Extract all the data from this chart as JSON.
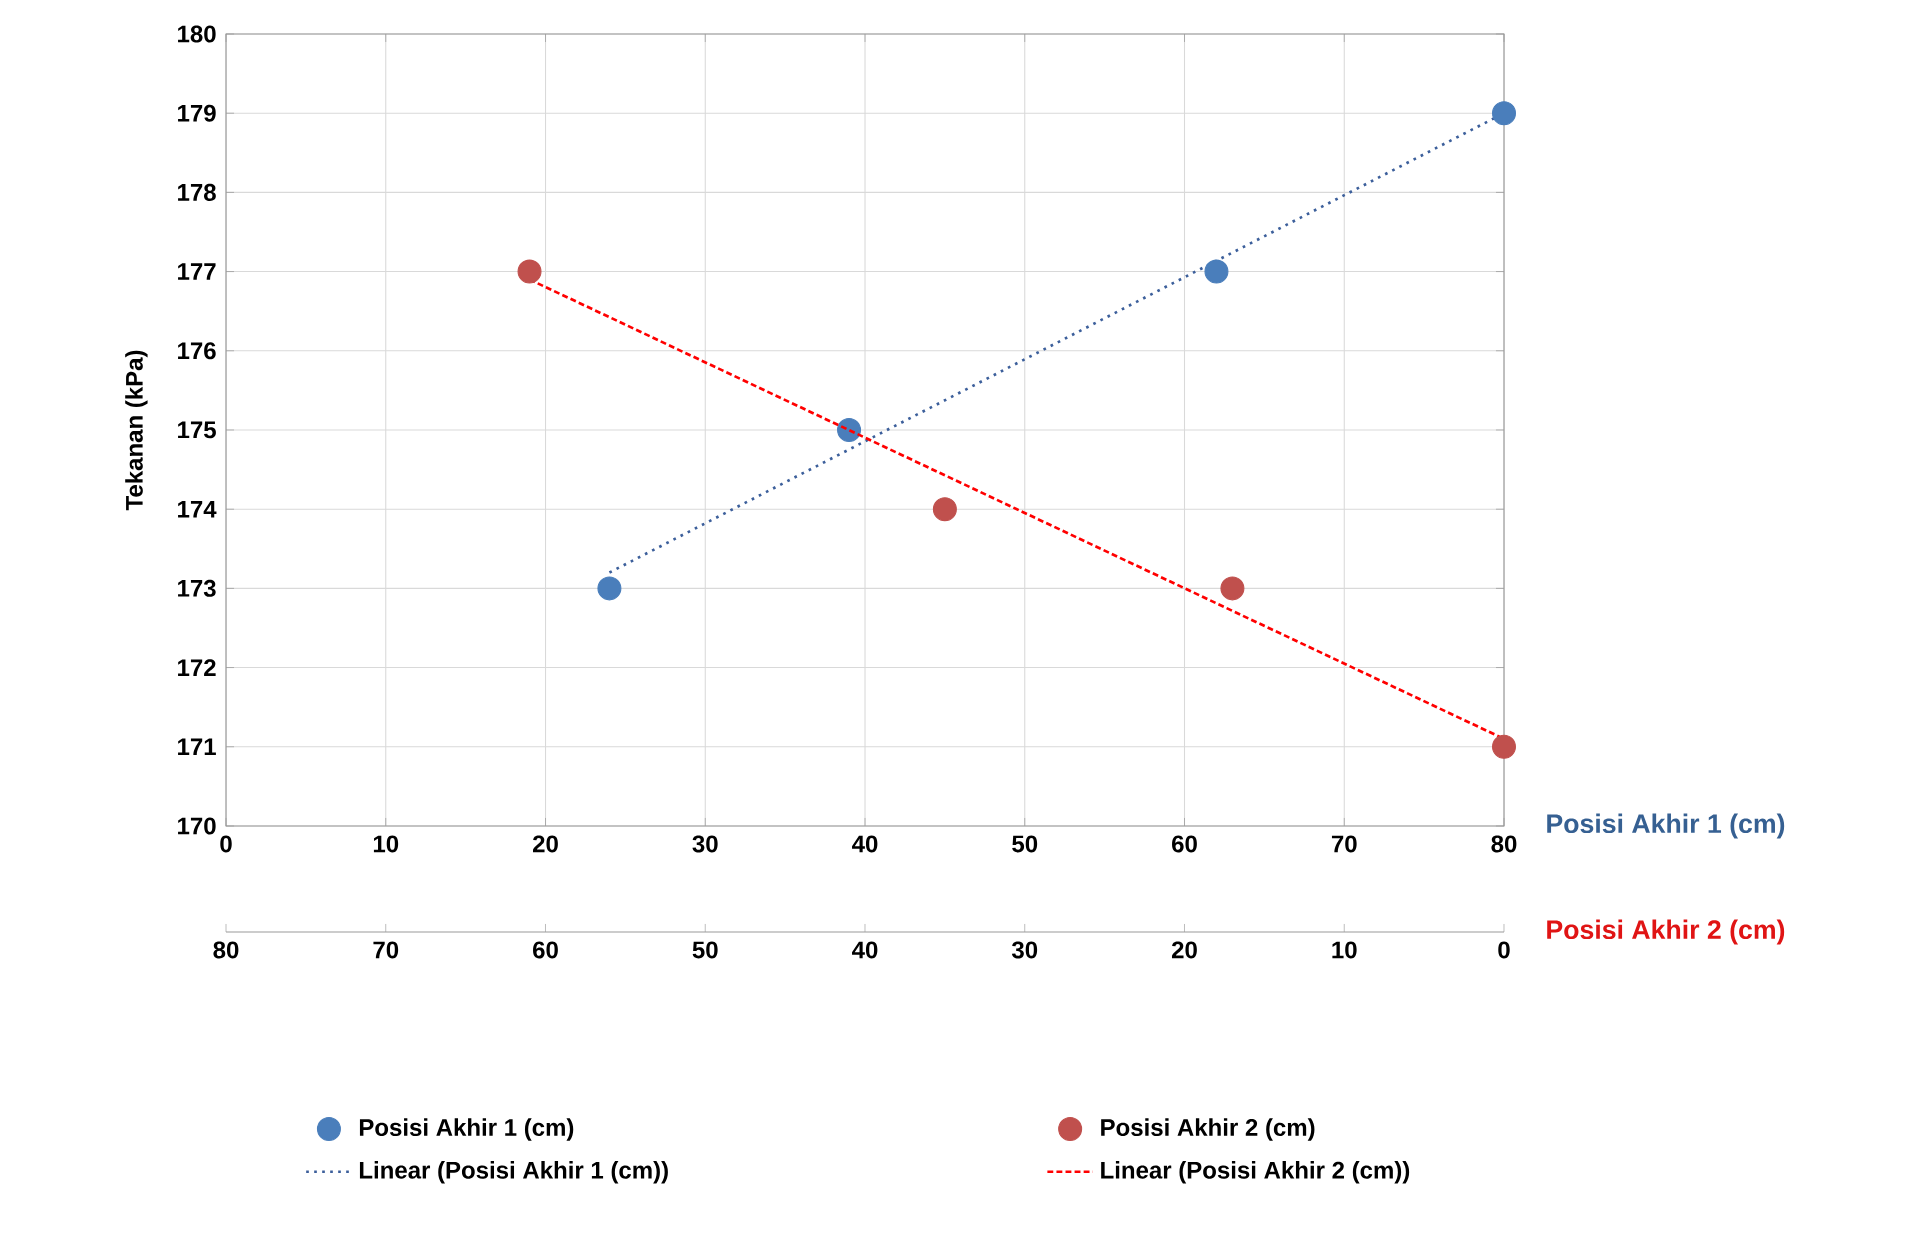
{
  "chart_data": {
    "type": "scatter",
    "ylabel": "Tekanan (kPa)",
    "xlabel": "Posisi Akhir 1 (cm)",
    "x2label": "Posisi Akhir 2 (cm)",
    "xlim": [
      0,
      80
    ],
    "xticks": [
      0,
      10,
      20,
      30,
      40,
      50,
      60,
      70,
      80
    ],
    "x2lim": [
      80,
      0
    ],
    "x2ticks": [
      80,
      70,
      60,
      50,
      40,
      30,
      20,
      10,
      0
    ],
    "ylim": [
      170,
      180
    ],
    "yticks": [
      170,
      171,
      172,
      173,
      174,
      175,
      176,
      177,
      178,
      179,
      180
    ],
    "grid": true,
    "legend": "bottom",
    "series": [
      {
        "name": "Posisi Akhir 1 (cm)",
        "marker": "circle",
        "color": "#4a7ebb",
        "x": [
          24,
          39,
          62,
          80
        ],
        "values": [
          173,
          175,
          177,
          179
        ]
      },
      {
        "name": "Linear (Posisi Akhir 1 (cm))",
        "type": "line",
        "marker": "none",
        "line_style": "dotted",
        "color": "#3c5f9b",
        "x": [
          24,
          80
        ],
        "values": [
          173.2,
          179
        ]
      },
      {
        "name": "Posisi Akhir 2 (cm)",
        "axis": "x2",
        "marker": "circle",
        "color": "#c0504d",
        "x": [
          61,
          35,
          17,
          0
        ],
        "values": [
          177,
          174,
          173,
          171
        ]
      },
      {
        "name": "Linear (Posisi Akhir 2 (cm))",
        "type": "line",
        "axis": "x2",
        "marker": "none",
        "line_style": "dashed",
        "color": "#ff0000",
        "x": [
          61,
          0
        ],
        "values": [
          176.9,
          171.1
        ]
      }
    ]
  }
}
